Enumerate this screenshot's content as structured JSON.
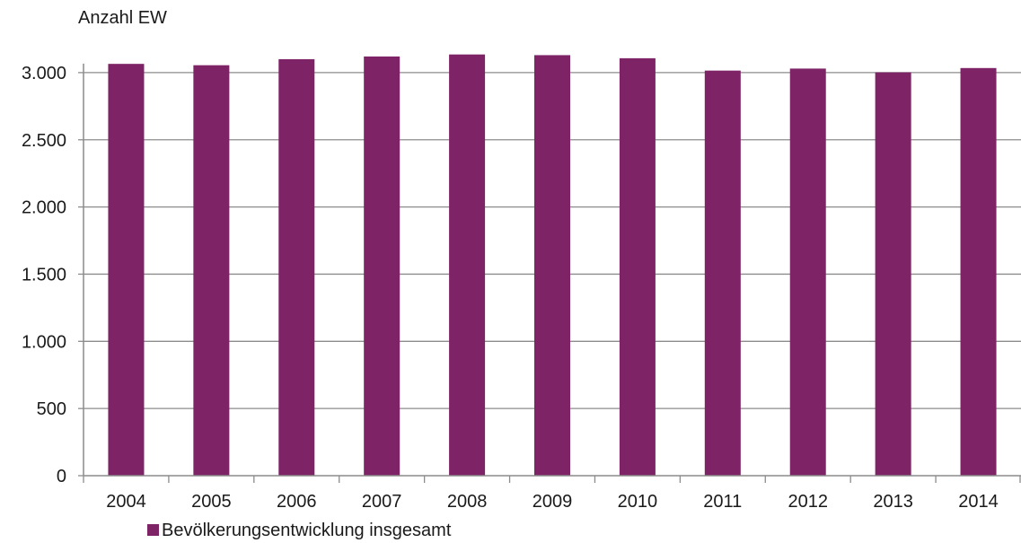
{
  "chart_data": {
    "type": "bar",
    "title": "",
    "ylabel": "Anzahl EW",
    "xlabel": "",
    "categories": [
      "2004",
      "2005",
      "2006",
      "2007",
      "2008",
      "2009",
      "2010",
      "2011",
      "2012",
      "2013",
      "2014"
    ],
    "series": [
      {
        "name": "Bevölkerungsentwicklung insgesamt",
        "color": "#7f2367",
        "values": [
          3065,
          3055,
          3100,
          3120,
          3135,
          3130,
          3107,
          3015,
          3030,
          3002,
          3034
        ]
      }
    ],
    "ylim": [
      0,
      3000
    ],
    "yticks": [
      0,
      500,
      1000,
      1500,
      2000,
      2500,
      3000
    ],
    "ytick_labels": [
      "0",
      "500",
      "1.000",
      "1.500",
      "2.000",
      "2.500",
      "3.000"
    ],
    "grid": true,
    "legend": "bottom-left",
    "colors": {
      "bar": "#7f2367",
      "grid": "#8c8c8c",
      "axis": "#8c8c8c",
      "text": "#1a1a1a"
    }
  }
}
